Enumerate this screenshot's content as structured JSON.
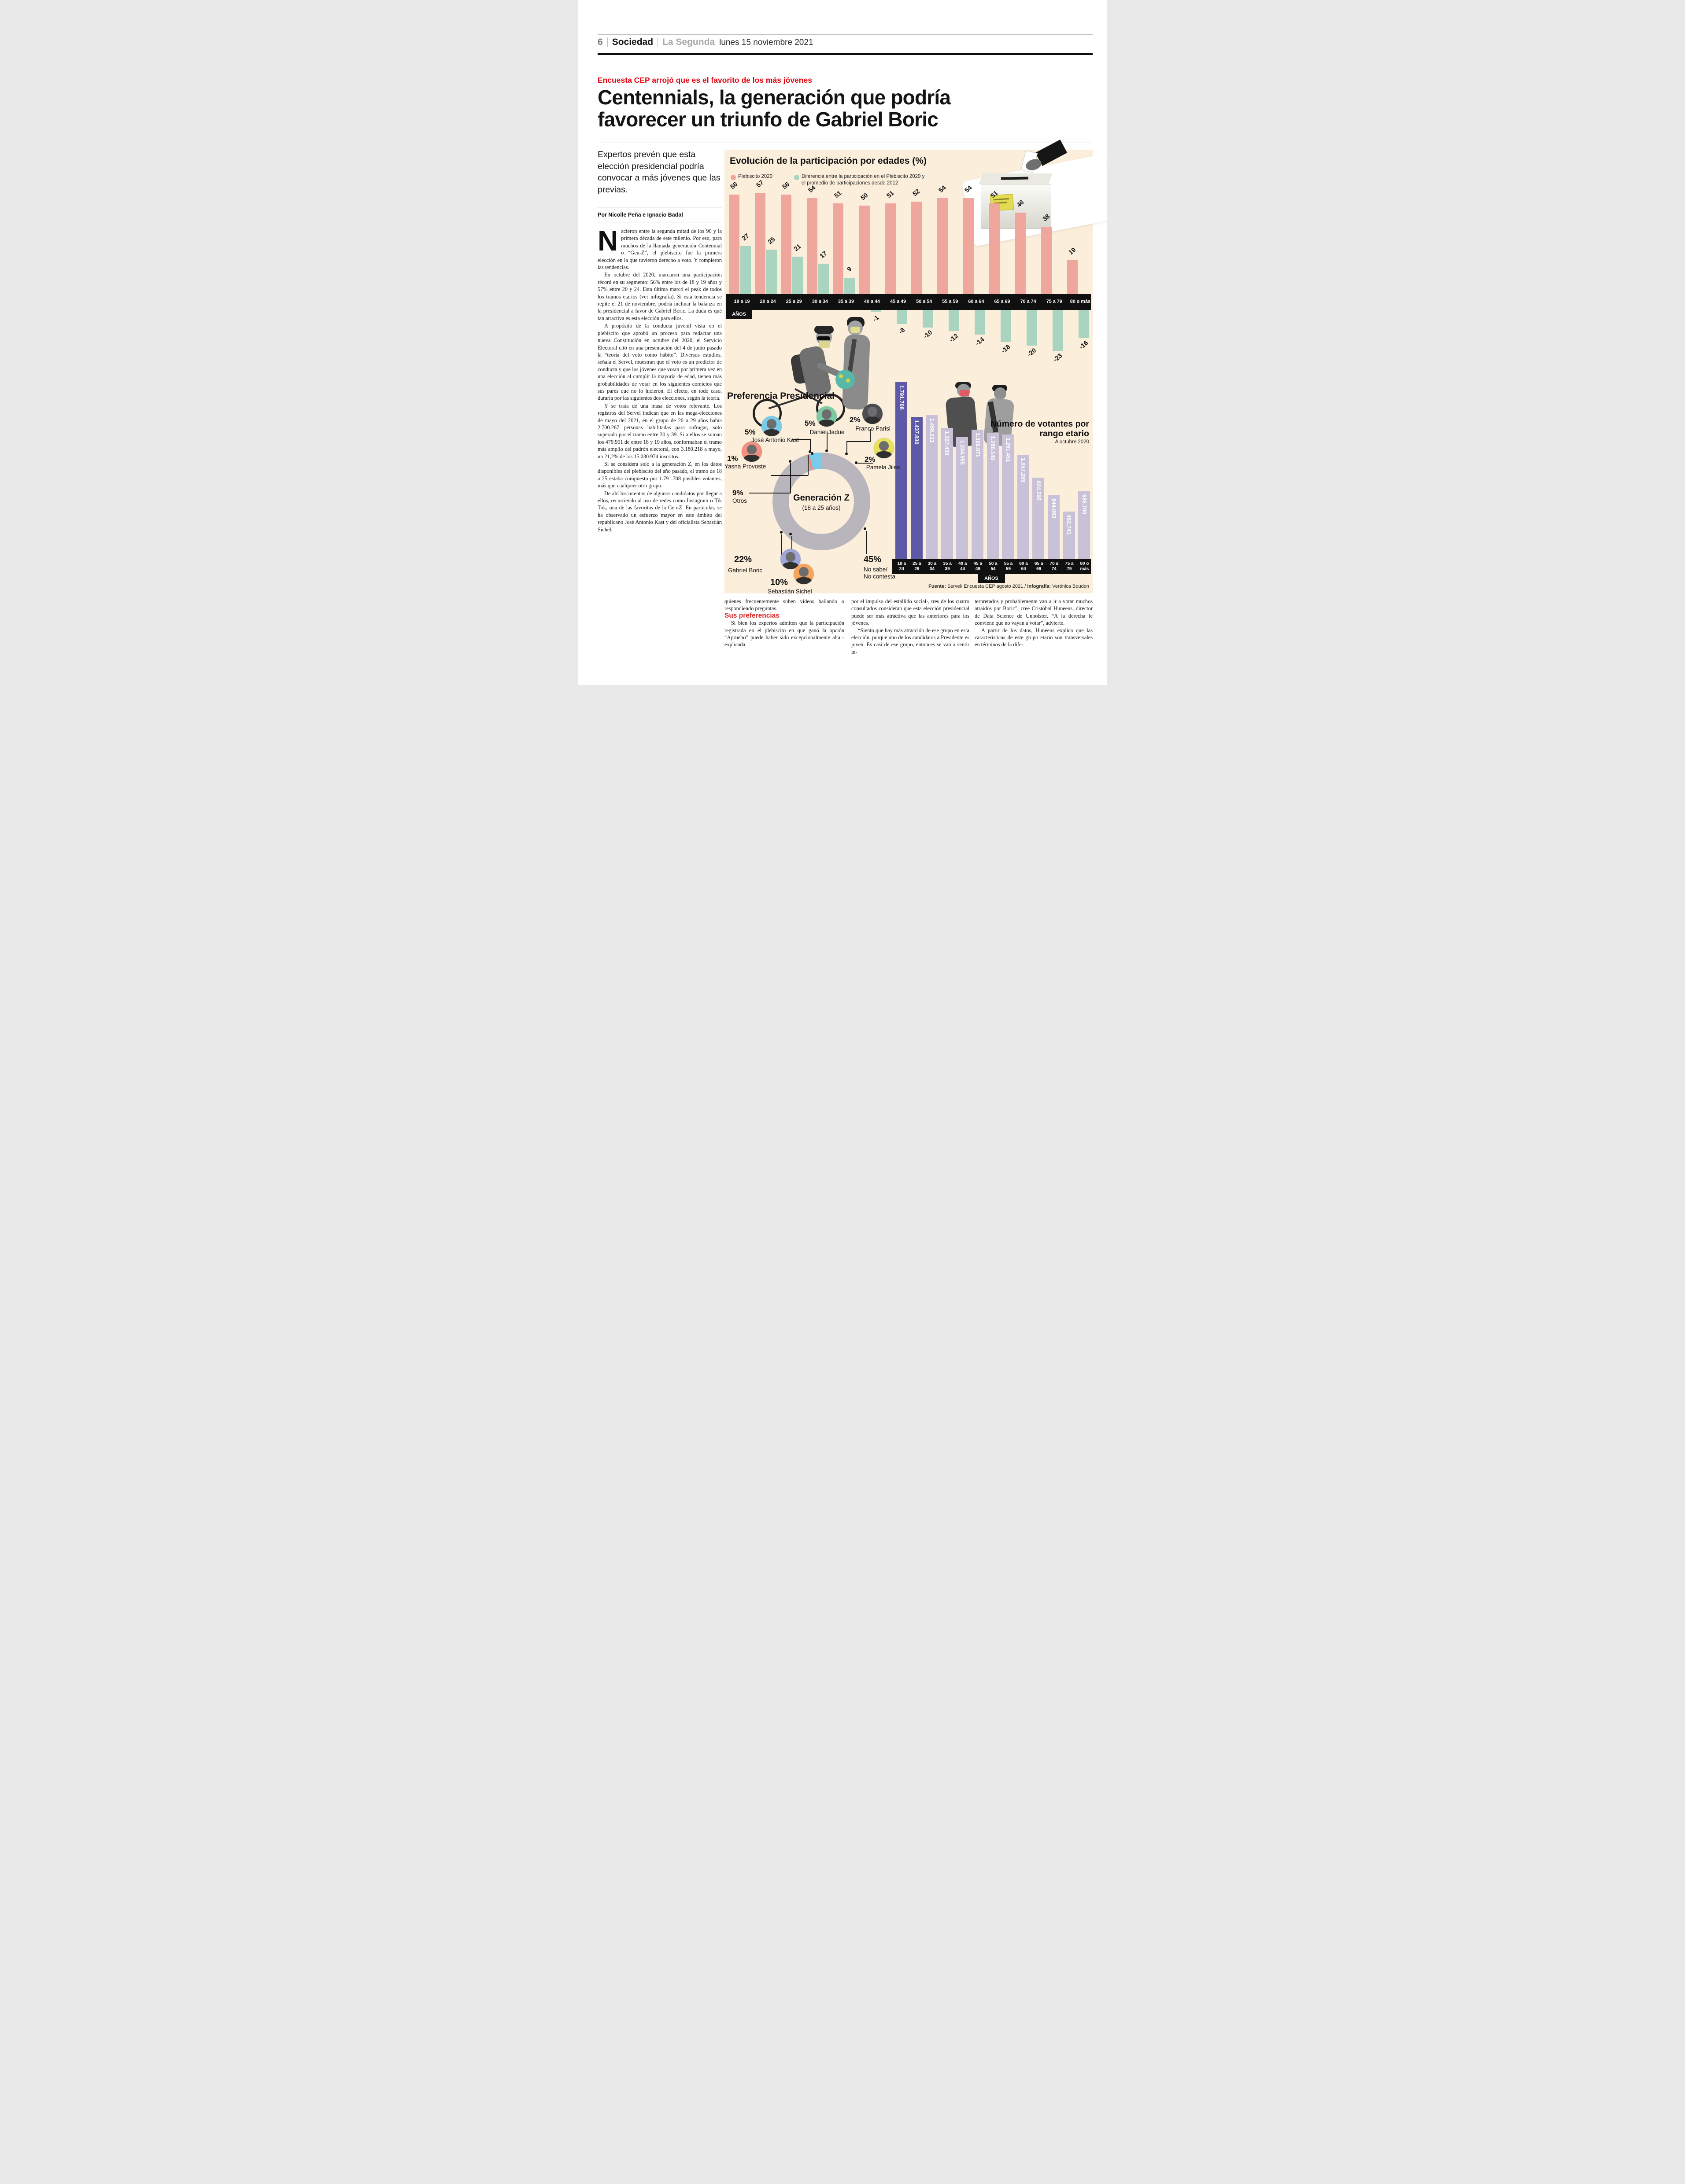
{
  "colors": {
    "cream": "#fbeedb",
    "kicker_red": "#e30613",
    "subhead_red": "#d92b2b",
    "pink_bar": "#efa79d",
    "green_bar": "#a9d4c0",
    "band_black": "#101010",
    "purple_dark": "#5d59a6",
    "purple_light": "#c9c1d8"
  },
  "header": {
    "page_number": "6",
    "section": "Sociedad",
    "newspaper": "La Segunda",
    "date": "lunes 15 noviembre 2021"
  },
  "article": {
    "kicker": "Encuesta CEP arrojó que es el favorito de los más jóvenes",
    "headline_line1": "Centennials, la generación que podría",
    "headline_line2": "favorecer un triunfo de Gabriel Boric",
    "standfirst": "Expertos prevén que esta elección presidencial podría convocar a más jóvenes que las previas.",
    "byline": "Por Nicolle Peña e Ignacio Badal",
    "dropcap": "N",
    "p1": "acieron entre la segunda mitad de los 90 y la primera década de este milenio. Por eso, para muchos de la llamada generación Centennial o “Gen-Z”, el plebiscito fue la primera elección en la que tuvieron derecho a voto. Y rompieron las tendencias.",
    "p2": "En octubre del 2020, marcaron una participación récord en su segmento: 56% entre los de 18 y 19 años y 57% entre 20 y 24. Esta última marcó el peak de todos los tramos etarios (ver infografía). Si esta tendencia se repite el 21 de noviembre, podría inclinar la balanza en la presidencial a favor de Gabriel Boric. La duda es qué tan atractiva es esta elección para ellos.",
    "p3": "A propósito de la conducta juvenil vista en el plebiscito que aprobó un proceso para redactar una nueva Constitución en octubre del 2020, el Servicio Electoral citó en una presentación del 4 de junio pasado la “teoría del voto como hábito”. Diversos estudios, señala el Servel, muestran que el voto es un predictor de conducta y que los jóvenes que votan por primera vez en una elección al cumplir la mayoría de edad, tienen más probabilidades de votar en los siguientes comicios que sus pares que no lo hicieron. El efecto, en todo caso, duraría por las siguientes dos elecciones, según la teoría.",
    "p4": "Y se trata de una masa de votos relevante. Los registros del Servel indican que en las mega-elecciones de mayo del 2021, en el grupo de 20 a 29 años había 2.700.267 personas habilitadas para sufragar, solo superado por el tramo entre 30 y 39. Si a ellos se suman los 479.951 de entre 18 y 19 años, conformaban el tramo más amplio del padrón electoral, con 3.180.218 a mayo, un 21,2% de los 15.030.974 inscritos.",
    "p5": "Si se considera solo a la generación Z, en los datos disponibles del plebiscito del año pasado, el tramo de 18 a 25 estaba compuesto por 1.791.708 posibles votantes, más que cualquier otro grupo.",
    "p6": "De ahí los intentos de algunos candidatos por llegar a ellos, recurriendo al uso de redes como Instagram o Tik Tok, una de las favoritas de la Gen-Z. En particular, se ha observado un esfuerzo mayor en este ámbito del republicano José Antonio Kast y del oficialista Sebastián Sichel,",
    "col2_p1": "quienes frecuentemente suben videos bailando o respondiendo preguntas.",
    "subhead": "Sus preferencias",
    "col2_p2": "Si bien los expertos admiten que la participación registrada en el plebiscito en que ganó la opción “Apruebo” puede haber sido excepcionalmente alta -explicada",
    "col3_p1": "por el impulso del estallido social-, tres de los cuatro consultados consideran que esta elección presidencial puede ser más atractiva que las anteriores para los jóvenes.",
    "col3_p2": "“Siento que hay más atracción de ese grupo en esta elección, porque uno de los candidatos a Presidente es joven. Es casi de ese grupo, entonces se van a sentir in-",
    "col4_p1": "terpretados y probablemente van a ir a votar muchos atraídos por Boric”, cree Cristóbal Huneeus, director de Data Science de Unholster. “A la derecha le conviene que no vayan a votar”, advierte.",
    "col4_p2": "A partir de los datos, Huneeus explica que las características de este grupo etario son transversales en términos de la dife-"
  },
  "infographic": {
    "years_label": "AÑOS",
    "source_label": "Fuente:",
    "source_text": " Servel/ Encuesta CEP agosto 2021 / ",
    "credit_label": "Infografía:",
    "credit_text": " Verónica Boudon"
  },
  "chart_data": [
    {
      "type": "bar",
      "title": "Evolución de la participación por edades (%)",
      "legend": [
        {
          "label": "Plebiscito 2020",
          "color": "#efa79d"
        },
        {
          "label": "Diferencia entre la participación en el Plebiscito 2020 y\nel promedio de participaciones desde 2012",
          "color": "#a9d4c0"
        }
      ],
      "categories": [
        "18 a 19",
        "20 a 24",
        "25 a 29",
        "30 a 34",
        "35 a 39",
        "40 a 44",
        "45 a 49",
        "50 a 54",
        "55 a 59",
        "60 a 64",
        "65 a 69",
        "70 a 74",
        "75 a 79",
        "80 o más"
      ],
      "series": [
        {
          "name": "Plebiscito 2020",
          "values": [
            56,
            57,
            56,
            54,
            51,
            50,
            51,
            52,
            54,
            54,
            51,
            46,
            38,
            19
          ]
        },
        {
          "name": "Diferencia vs promedio desde 2012",
          "values": [
            27,
            25,
            21,
            17,
            9,
            -1,
            -8,
            -10,
            -12,
            -14,
            -18,
            -20,
            -23,
            -16
          ]
        }
      ],
      "xlabel": "AÑOS",
      "grid": false
    },
    {
      "type": "pie",
      "title": "Preferencia Presidencial",
      "center_label": "Generación Z",
      "center_sublabel": "(18 a 25 años)",
      "segments": [
        {
          "name": "Otros",
          "value": 9,
          "pct_label": "9%",
          "color": "#b9b5bd"
        },
        {
          "name": "Yasna Provoste",
          "value": 1,
          "pct_label": "1%",
          "color": "#f19080"
        },
        {
          "name": "José Antonio Kast",
          "value": 5,
          "pct_label": "5%",
          "color": "#79cbe9"
        },
        {
          "name": "Daniel Jadue",
          "value": 5,
          "pct_label": "5%",
          "color": "#7dc9a4"
        },
        {
          "name": "Franco Parisi",
          "value": 2,
          "pct_label": "2%",
          "color": "#4d4d52"
        },
        {
          "name": "Pamela Jiles",
          "value": 2,
          "pct_label": "2%",
          "color": "#e6e05b"
        },
        {
          "name": "No sabe/\nNo contesta",
          "value": 45,
          "pct_label": "45%",
          "color": "#f15f6d"
        },
        {
          "name": "Sebastián Sichel",
          "value": 10,
          "pct_label": "10%",
          "color": "#f6a45b"
        },
        {
          "name": "Gabriel Boric",
          "value": 22,
          "pct_label": "22%",
          "color": "#9fa5d9"
        }
      ]
    },
    {
      "type": "bar",
      "title": "Número de votantes por rango etario",
      "subtitle": "A octubre 2020",
      "categories": [
        "18 a 24",
        "25 a 29",
        "30 a 34",
        "35 a 39",
        "40 a 44",
        "45 a 49",
        "50 a 54",
        "55 a 59",
        "60 a 64",
        "65 a 69",
        "70 a 74",
        "75 a 79",
        "80 o más"
      ],
      "values": [
        1791708,
        1437830,
        1458221,
        1327439,
        1234955,
        1309071,
        1280140,
        1261451,
        1057283,
        824595,
        644063,
        482741,
        686700
      ],
      "value_labels": [
        "1.791.708",
        "1.437.830",
        "1.458.221",
        "1.327.439",
        "1.234.955",
        "1.309.071",
        "1.280.140",
        "1.261.451",
        "1.057.283",
        "824.595",
        "644.063",
        "482.741",
        "686.700"
      ],
      "highlight_count": 2,
      "xlabel": "AÑOS",
      "grid": false
    }
  ]
}
